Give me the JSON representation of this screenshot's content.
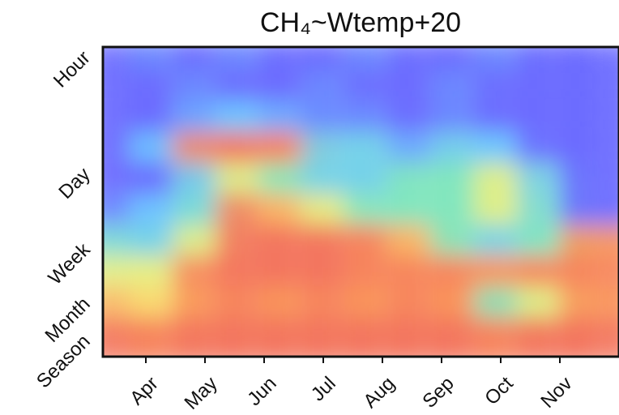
{
  "chart_data": {
    "type": "wavelet-coherence",
    "title": "CH₄~Wtemp+20",
    "categories": [
      "Apr",
      "May",
      "Jun",
      "Jul",
      "Aug",
      "Sep",
      "Oct",
      "Nov"
    ],
    "y_categories": [
      "Hour",
      "Day",
      "Week",
      "Month",
      "Season"
    ],
    "z": [
      [
        0.3,
        0.35,
        0.3,
        0.35,
        0.3,
        0.3,
        0.35,
        0.3,
        0.3,
        0.35,
        0.3,
        0.3
      ],
      [
        0.3,
        0.3,
        0.35,
        0.3,
        0.3,
        0.35,
        0.3,
        0.3,
        0.35,
        0.3,
        0.3,
        0.3
      ],
      [
        0.25,
        0.3,
        0.4,
        0.45,
        0.4,
        0.35,
        0.35,
        0.3,
        0.35,
        0.3,
        0.25,
        0.25
      ],
      [
        0.3,
        0.45,
        0.9,
        0.95,
        0.9,
        0.5,
        0.5,
        0.4,
        0.5,
        0.45,
        0.3,
        0.25
      ],
      [
        0.2,
        0.3,
        0.5,
        0.7,
        0.6,
        0.5,
        0.5,
        0.6,
        0.6,
        0.7,
        0.5,
        0.25
      ],
      [
        0.35,
        0.45,
        0.55,
        0.9,
        0.8,
        0.7,
        0.6,
        0.6,
        0.6,
        0.7,
        0.55,
        0.3
      ],
      [
        0.55,
        0.5,
        0.7,
        0.95,
        0.95,
        0.95,
        0.9,
        0.8,
        0.6,
        0.5,
        0.6,
        0.85
      ],
      [
        0.7,
        0.7,
        0.9,
        0.95,
        0.95,
        0.95,
        0.9,
        0.9,
        0.9,
        0.85,
        0.9,
        0.9
      ],
      [
        0.8,
        0.75,
        0.85,
        0.9,
        0.85,
        0.9,
        0.85,
        0.9,
        0.85,
        0.6,
        0.7,
        0.85
      ],
      [
        0.95,
        0.9,
        0.95,
        0.95,
        0.95,
        0.95,
        0.95,
        0.95,
        0.95,
        0.9,
        0.95,
        0.95
      ]
    ]
  }
}
